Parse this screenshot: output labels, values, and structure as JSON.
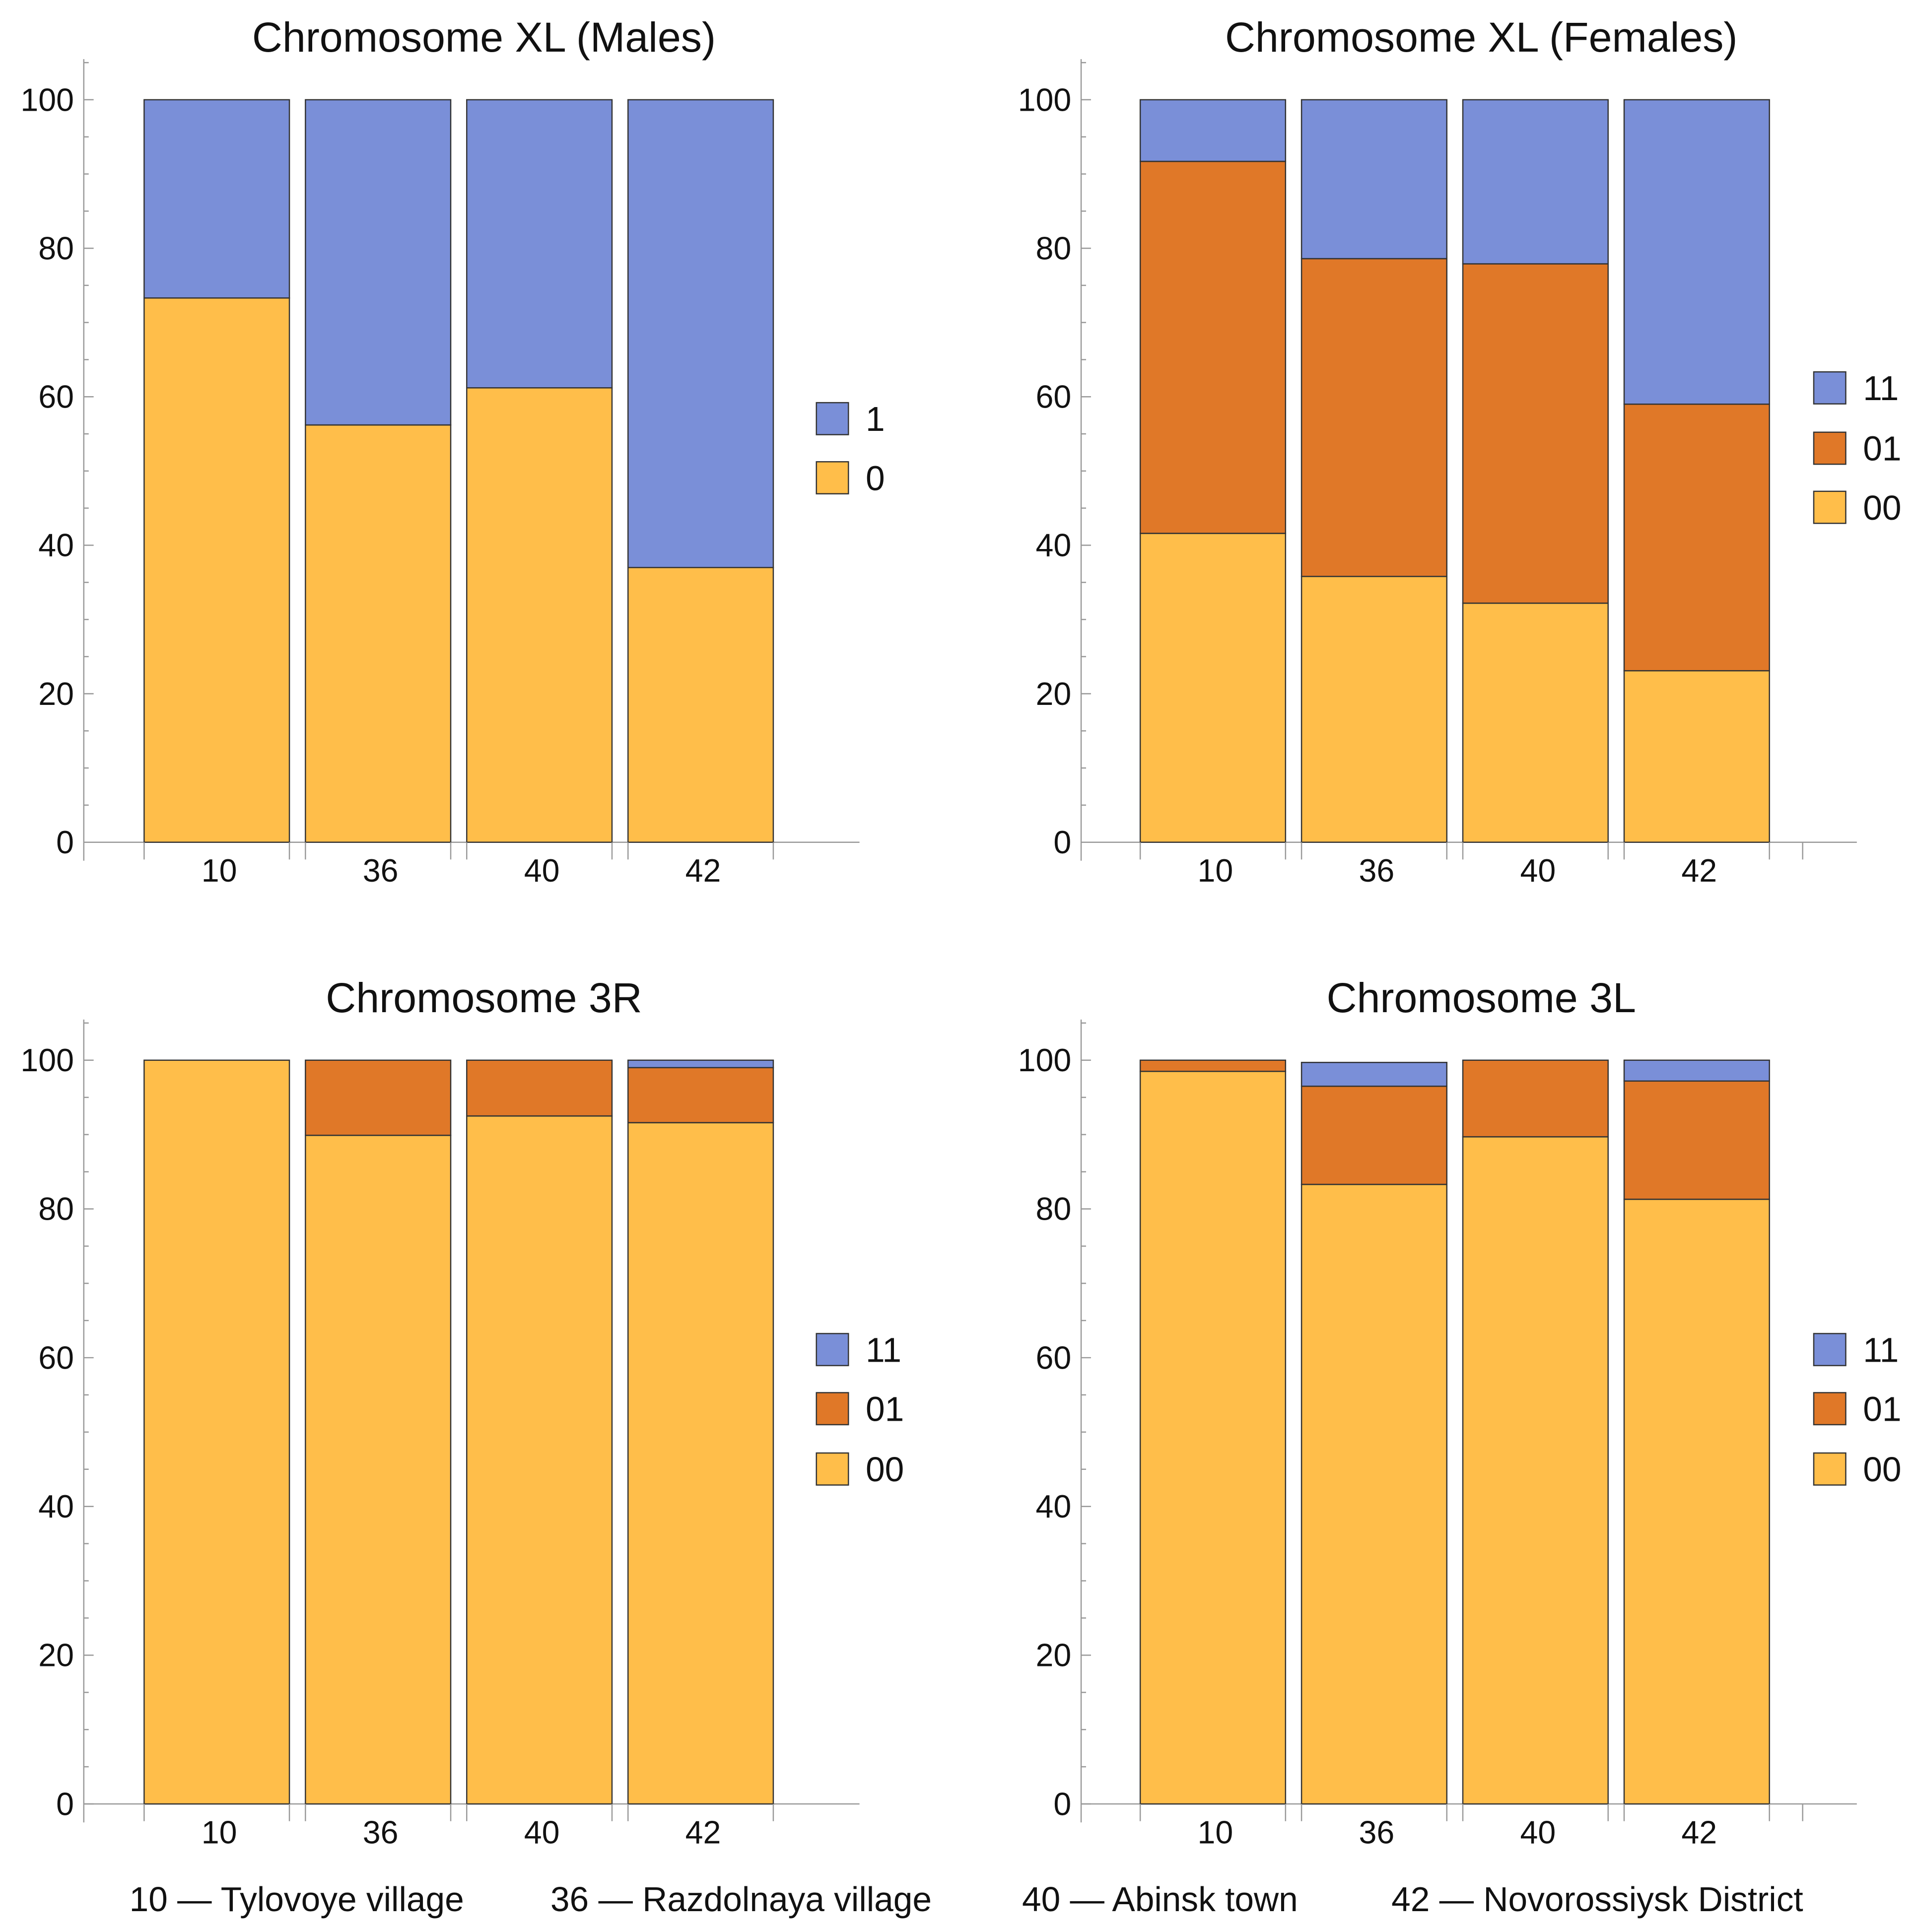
{
  "colors": {
    "00": "#FFBE4A",
    "01": "#E07828",
    "11": "#7A8FD8",
    "0": "#FFBE4A",
    "1": "#7A8FD8",
    "axis": "#999999",
    "edge": "#333333"
  },
  "chart_data": [
    {
      "type": "bar",
      "stacked": true,
      "title": "Chromosome XL (Males)",
      "categories": [
        "10",
        "36",
        "40",
        "42"
      ],
      "ylim": [
        0,
        100
      ],
      "yticks": [
        "0",
        "20",
        "40",
        "60",
        "80",
        "100"
      ],
      "legend_position": "right",
      "series": [
        {
          "name": "0",
          "values": [
            73.3,
            56.2,
            61.2,
            37.0
          ]
        },
        {
          "name": "1",
          "values": [
            26.7,
            43.8,
            38.8,
            63.0
          ]
        }
      ]
    },
    {
      "type": "bar",
      "stacked": true,
      "title": "Chromosome XL (Females)",
      "categories": [
        "10",
        "36",
        "40",
        "42"
      ],
      "ylim": [
        0,
        100
      ],
      "yticks": [
        "0",
        "20",
        "40",
        "60",
        "80",
        "100"
      ],
      "legend_position": "right",
      "series": [
        {
          "name": "00",
          "values": [
            41.6,
            35.8,
            32.2,
            23.1
          ]
        },
        {
          "name": "01",
          "values": [
            50.1,
            42.8,
            45.7,
            35.9
          ]
        },
        {
          "name": "11",
          "values": [
            8.3,
            21.4,
            22.1,
            41.0
          ]
        }
      ]
    },
    {
      "type": "bar",
      "stacked": true,
      "title": "Chromosome 3R",
      "categories": [
        "10",
        "36",
        "40",
        "42"
      ],
      "ylim": [
        0,
        100
      ],
      "yticks": [
        "0",
        "20",
        "40",
        "60",
        "80",
        "100"
      ],
      "legend_position": "right",
      "series": [
        {
          "name": "00",
          "values": [
            100,
            89.9,
            92.5,
            91.6
          ]
        },
        {
          "name": "01",
          "values": [
            0,
            10.1,
            7.5,
            7.4
          ]
        },
        {
          "name": "11",
          "values": [
            0,
            0,
            0,
            1.0
          ]
        }
      ]
    },
    {
      "type": "bar",
      "stacked": true,
      "title": "Chromosome 3L",
      "categories": [
        "10",
        "36",
        "40",
        "42"
      ],
      "ylim": [
        0,
        100
      ],
      "yticks": [
        "0",
        "20",
        "40",
        "60",
        "80",
        "100"
      ],
      "legend_position": "right",
      "series": [
        {
          "name": "00",
          "values": [
            98.5,
            83.3,
            89.7,
            81.3
          ]
        },
        {
          "name": "01",
          "values": [
            1.5,
            13.2,
            10.3,
            15.9
          ]
        },
        {
          "name": "11",
          "values": [
            0,
            3.2,
            0,
            2.8
          ]
        }
      ]
    }
  ],
  "footer": [
    "10 — Tylovoye village",
    "36 — Razdolnaya village",
    "40 — Abinsk town",
    "42 — Novorossiysk District"
  ]
}
